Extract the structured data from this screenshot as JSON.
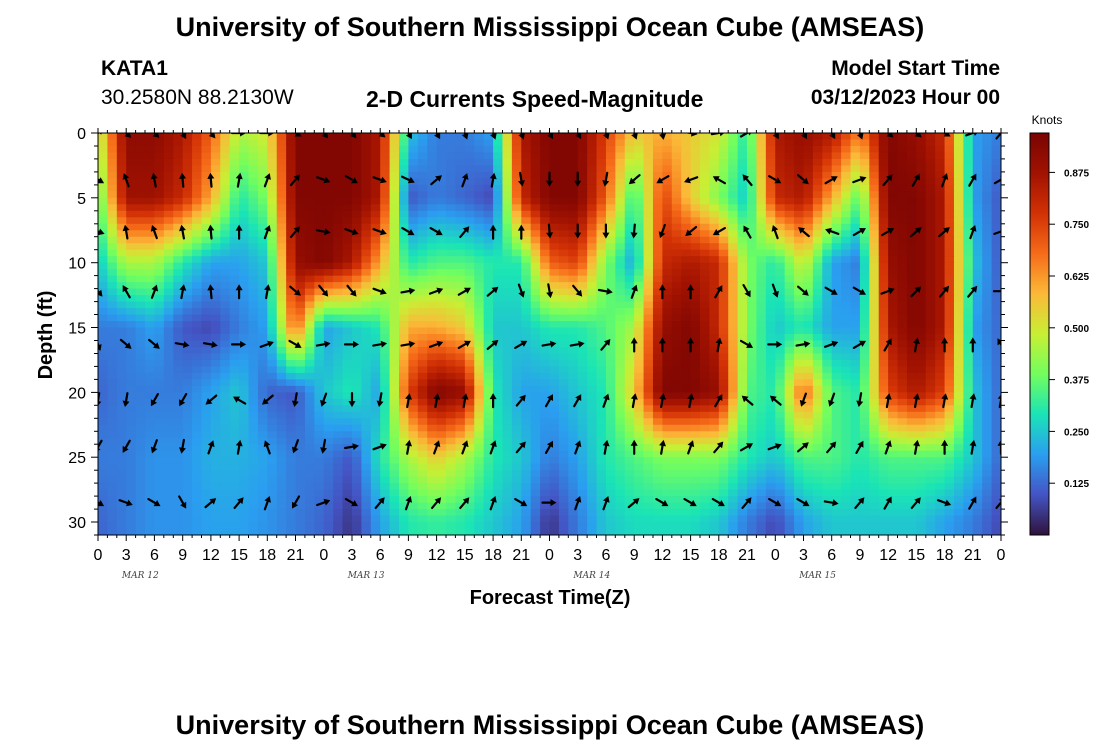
{
  "header": {
    "title_top": "University of Southern Mississippi Ocean Cube (AMSEAS)",
    "station": "KATA1",
    "coords": "30.2580N  88.2130W",
    "plot_title": "2-D Currents Speed-Magnitude",
    "model_start_label": "Model Start Time",
    "model_start_value": "03/12/2023 Hour 00",
    "title_bottom": "University of Southern Mississippi Ocean Cube (AMSEAS)"
  },
  "chart_data": {
    "type": "heatmap",
    "title": "2-D Currents Speed-Magnitude",
    "xlabel": "Forecast Time(Z)",
    "ylabel": "Depth (ft)",
    "x_tick_labels": [
      "0",
      "3",
      "6",
      "9",
      "12",
      "15",
      "18",
      "21",
      "0",
      "3",
      "6",
      "9",
      "12",
      "15",
      "18",
      "21",
      "0",
      "3",
      "6",
      "9",
      "12",
      "15",
      "18",
      "21",
      "0",
      "3",
      "6",
      "9",
      "12",
      "15",
      "18",
      "21",
      "0"
    ],
    "x_range_hours": [
      0,
      96
    ],
    "day_labels": [
      "MAR 12",
      "MAR 13",
      "MAR 14",
      "MAR 15"
    ],
    "y_ticks": [
      0,
      5,
      10,
      15,
      20,
      25,
      30
    ],
    "ylim": [
      0,
      31
    ],
    "colorbar": {
      "label": "Knots",
      "ticks": [
        "0.875",
        "0.750",
        "0.625",
        "0.500",
        "0.375",
        "0.250",
        "0.125"
      ],
      "tick_values": [
        0.875,
        0.75,
        0.625,
        0.5,
        0.375,
        0.25,
        0.125
      ],
      "range": [
        0.0,
        0.97
      ]
    },
    "speed_rows_depths_ft": [
      0,
      5,
      10,
      15,
      20,
      25,
      30
    ],
    "speed_cols_hours": [
      0,
      3,
      6,
      9,
      12,
      15,
      18,
      21,
      24,
      27,
      30,
      33,
      36,
      39,
      42,
      45,
      48,
      51,
      54,
      57,
      60,
      63,
      66,
      69,
      72,
      75,
      78,
      81,
      84,
      87,
      90,
      93,
      96
    ],
    "speed": [
      [
        0.45,
        0.92,
        0.92,
        0.85,
        0.7,
        0.45,
        0.5,
        0.95,
        0.95,
        0.95,
        0.85,
        0.25,
        0.15,
        0.15,
        0.2,
        0.85,
        0.95,
        0.95,
        0.75,
        0.55,
        0.6,
        0.55,
        0.5,
        0.3,
        0.85,
        0.9,
        0.85,
        0.65,
        0.95,
        0.9,
        0.8,
        0.2,
        0.15
      ],
      [
        0.35,
        0.88,
        0.88,
        0.8,
        0.6,
        0.3,
        0.4,
        0.95,
        0.95,
        0.95,
        0.85,
        0.1,
        0.15,
        0.12,
        0.08,
        0.8,
        0.95,
        0.95,
        0.7,
        0.3,
        0.75,
        0.55,
        0.4,
        0.25,
        0.8,
        0.85,
        0.6,
        0.35,
        0.95,
        0.95,
        0.85,
        0.2,
        0.1
      ],
      [
        0.25,
        0.45,
        0.45,
        0.3,
        0.2,
        0.2,
        0.25,
        0.9,
        0.95,
        0.85,
        0.6,
        0.3,
        0.35,
        0.35,
        0.3,
        0.3,
        0.7,
        0.75,
        0.4,
        0.2,
        0.8,
        0.85,
        0.8,
        0.4,
        0.3,
        0.5,
        0.2,
        0.15,
        0.9,
        0.95,
        0.85,
        0.25,
        0.1
      ],
      [
        0.15,
        0.15,
        0.2,
        0.1,
        0.08,
        0.15,
        0.2,
        0.7,
        0.2,
        0.25,
        0.3,
        0.6,
        0.6,
        0.55,
        0.25,
        0.25,
        0.3,
        0.3,
        0.35,
        0.45,
        0.9,
        0.95,
        0.8,
        0.4,
        0.25,
        0.3,
        0.2,
        0.2,
        0.85,
        0.95,
        0.85,
        0.2,
        0.12
      ],
      [
        0.12,
        0.15,
        0.15,
        0.15,
        0.2,
        0.25,
        0.12,
        0.1,
        0.25,
        0.3,
        0.2,
        0.75,
        0.95,
        0.9,
        0.3,
        0.2,
        0.2,
        0.25,
        0.3,
        0.55,
        0.95,
        0.95,
        0.9,
        0.35,
        0.3,
        0.7,
        0.35,
        0.3,
        0.75,
        0.85,
        0.75,
        0.25,
        0.12
      ],
      [
        0.15,
        0.15,
        0.18,
        0.18,
        0.22,
        0.22,
        0.2,
        0.15,
        0.15,
        0.1,
        0.3,
        0.45,
        0.55,
        0.45,
        0.3,
        0.25,
        0.15,
        0.2,
        0.3,
        0.35,
        0.4,
        0.4,
        0.4,
        0.3,
        0.25,
        0.35,
        0.35,
        0.3,
        0.35,
        0.35,
        0.35,
        0.25,
        0.12
      ],
      [
        0.12,
        0.15,
        0.18,
        0.18,
        0.2,
        0.2,
        0.18,
        0.15,
        0.12,
        0.05,
        0.2,
        0.3,
        0.32,
        0.3,
        0.25,
        0.2,
        0.05,
        0.15,
        0.25,
        0.28,
        0.28,
        0.28,
        0.25,
        0.15,
        0.08,
        0.2,
        0.25,
        0.25,
        0.25,
        0.25,
        0.2,
        0.15,
        0.08
      ]
    ],
    "arrow_depths_ft": [
      0,
      3.6,
      7.6,
      12.2,
      16.3,
      20.6,
      24.2,
      28.5
    ],
    "arrow_hours": [
      0,
      3,
      6,
      9,
      12,
      15,
      18,
      21,
      24,
      27,
      30,
      33,
      36,
      39,
      42,
      45,
      48,
      51,
      54,
      57,
      60,
      63,
      66,
      69,
      72,
      75,
      78,
      81,
      84,
      87,
      90,
      93,
      96
    ],
    "arrow_directions_deg": [
      [
        45,
        135,
        135,
        150,
        140,
        90,
        90,
        120,
        140,
        140,
        130,
        150,
        150,
        160,
        160,
        160,
        150,
        150,
        160,
        160,
        170,
        100,
        80,
        60,
        150,
        150,
        150,
        160,
        130,
        130,
        120,
        70,
        40
      ],
      [
        120,
        340,
        350,
        355,
        355,
        10,
        20,
        40,
        110,
        120,
        110,
        115,
        50,
        20,
        10,
        170,
        180,
        180,
        190,
        230,
        240,
        250,
        300,
        320,
        120,
        130,
        60,
        70,
        40,
        30,
        20,
        30,
        60
      ],
      [
        110,
        350,
        340,
        350,
        355,
        0,
        20,
        40,
        100,
        110,
        110,
        120,
        120,
        40,
        0,
        0,
        175,
        180,
        180,
        185,
        200,
        230,
        240,
        330,
        340,
        310,
        290,
        60,
        60,
        50,
        50,
        20,
        70
      ],
      [
        140,
        330,
        20,
        10,
        355,
        0,
        10,
        130,
        140,
        140,
        110,
        80,
        70,
        60,
        50,
        160,
        170,
        140,
        100,
        20,
        0,
        0,
        30,
        150,
        160,
        130,
        120,
        120,
        70,
        45,
        40,
        40,
        90
      ],
      [
        160,
        130,
        130,
        100,
        100,
        90,
        70,
        120,
        80,
        90,
        80,
        80,
        70,
        60,
        50,
        60,
        80,
        80,
        40,
        0,
        0,
        0,
        10,
        120,
        90,
        80,
        70,
        60,
        30,
        10,
        0,
        0,
        330
      ],
      [
        190,
        190,
        210,
        210,
        230,
        300,
        230,
        190,
        200,
        180,
        190,
        10,
        10,
        10,
        0,
        40,
        30,
        30,
        20,
        10,
        10,
        10,
        30,
        310,
        310,
        200,
        200,
        190,
        10,
        10,
        10,
        10,
        10
      ],
      [
        210,
        210,
        200,
        190,
        20,
        10,
        340,
        200,
        190,
        80,
        70,
        10,
        20,
        20,
        20,
        40,
        30,
        20,
        10,
        0,
        10,
        20,
        40,
        60,
        70,
        50,
        40,
        30,
        20,
        10,
        0,
        10,
        0
      ],
      [
        120,
        110,
        120,
        150,
        50,
        40,
        20,
        210,
        70,
        120,
        40,
        20,
        40,
        40,
        20,
        120,
        90,
        20,
        20,
        50,
        120,
        120,
        120,
        40,
        120,
        120,
        100,
        40,
        30,
        40,
        110,
        30,
        40
      ]
    ]
  }
}
